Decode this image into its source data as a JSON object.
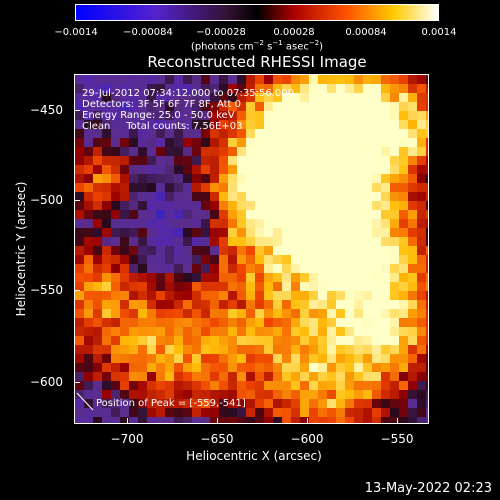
{
  "colorbar": {
    "ticks": [
      "−0.0014",
      "−0.00084",
      "−0.00028",
      "0.00028",
      "0.00084",
      "0.0014"
    ],
    "units_prefix": "(photons cm",
    "units_exp1": "−2",
    "units_mid1": " s",
    "units_exp2": "−1",
    "units_mid2": " asec",
    "units_exp3": "−2",
    "units_suffix": ")"
  },
  "plot": {
    "title": "Reconstructed RHESSI Image",
    "time_range": "29-Jul-2012 07:34:12.000 to 07:35:56.000",
    "detectors": "Detectors: 3F 5F 6F 7F 8F, Att 0",
    "energy_range": "Energy Range: 25.0 - 50.0 keV",
    "clean": "Clean     Total counts: 7.56E+03",
    "peak": "Position of Peak = [-559,-541]",
    "xlabel": "Heliocentric X (arcsec)",
    "ylabel": "Heliocentric Y (arcsec)",
    "xticks": [
      "−700",
      "−650",
      "−600",
      "−550"
    ],
    "yticks": [
      "−450",
      "−500",
      "−550",
      "−600"
    ]
  },
  "footer": {
    "timestamp": "13-May-2022 02:23"
  }
}
